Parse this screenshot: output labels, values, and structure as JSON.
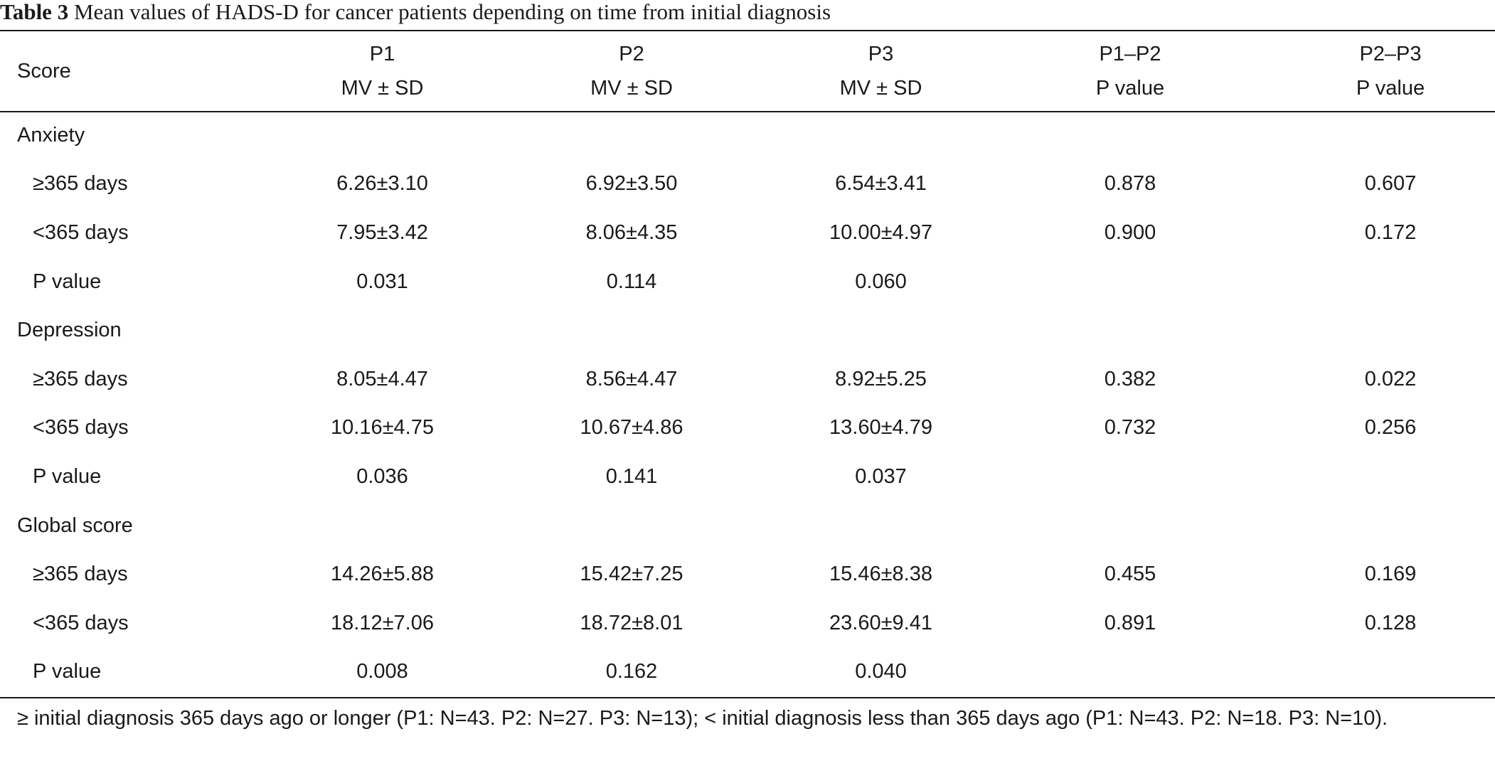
{
  "caption": {
    "label": "Table 3",
    "text": " Mean values of HADS-D for cancer patients depending on time from initial diagnosis"
  },
  "headers": {
    "score": "Score",
    "cols": [
      {
        "line1": "P1",
        "line2": "MV ± SD"
      },
      {
        "line1": "P2",
        "line2": "MV ± SD"
      },
      {
        "line1": "P3",
        "line2": "MV ± SD"
      },
      {
        "line1": "P1–P2",
        "line2": "P value"
      },
      {
        "line1": "P2–P3",
        "line2": "P value"
      }
    ]
  },
  "rows": [
    {
      "kind": "group",
      "label": "Anxiety",
      "cells": [
        "",
        "",
        "",
        "",
        ""
      ]
    },
    {
      "kind": "sub",
      "label": "≥365 days",
      "cells": [
        "6.26±3.10",
        "6.92±3.50",
        "6.54±3.41",
        "0.878",
        "0.607"
      ]
    },
    {
      "kind": "sub",
      "label": "<365 days",
      "cells": [
        "7.95±3.42",
        "8.06±4.35",
        "10.00±4.97",
        "0.900",
        "0.172"
      ]
    },
    {
      "kind": "sub",
      "label": "P value",
      "cells": [
        "0.031",
        "0.114",
        "0.060",
        "",
        ""
      ]
    },
    {
      "kind": "group",
      "label": "Depression",
      "cells": [
        "",
        "",
        "",
        "",
        ""
      ]
    },
    {
      "kind": "sub",
      "label": "≥365 days",
      "cells": [
        "8.05±4.47",
        "8.56±4.47",
        "8.92±5.25",
        "0.382",
        "0.022"
      ]
    },
    {
      "kind": "sub",
      "label": "<365 days",
      "cells": [
        "10.16±4.75",
        "10.67±4.86",
        "13.60±4.79",
        "0.732",
        "0.256"
      ]
    },
    {
      "kind": "sub",
      "label": "P value",
      "cells": [
        "0.036",
        "0.141",
        "0.037",
        "",
        ""
      ]
    },
    {
      "kind": "group",
      "label": "Global score",
      "cells": [
        "",
        "",
        "",
        "",
        ""
      ]
    },
    {
      "kind": "sub",
      "label": "≥365 days",
      "cells": [
        "14.26±5.88",
        "15.42±7.25",
        "15.46±8.38",
        "0.455",
        "0.169"
      ]
    },
    {
      "kind": "sub",
      "label": "<365 days",
      "cells": [
        "18.12±7.06",
        "18.72±8.01",
        "23.60±9.41",
        "0.891",
        "0.128"
      ]
    },
    {
      "kind": "sub",
      "label": "P value",
      "cells": [
        "0.008",
        "0.162",
        "0.040",
        "",
        ""
      ]
    }
  ],
  "footnote": "≥ initial diagnosis 365 days ago or longer (P1: N=43. P2: N=27. P3: N=13); < initial diagnosis less than 365 days ago (P1: N=43. P2: N=18. P3: N=10)."
}
